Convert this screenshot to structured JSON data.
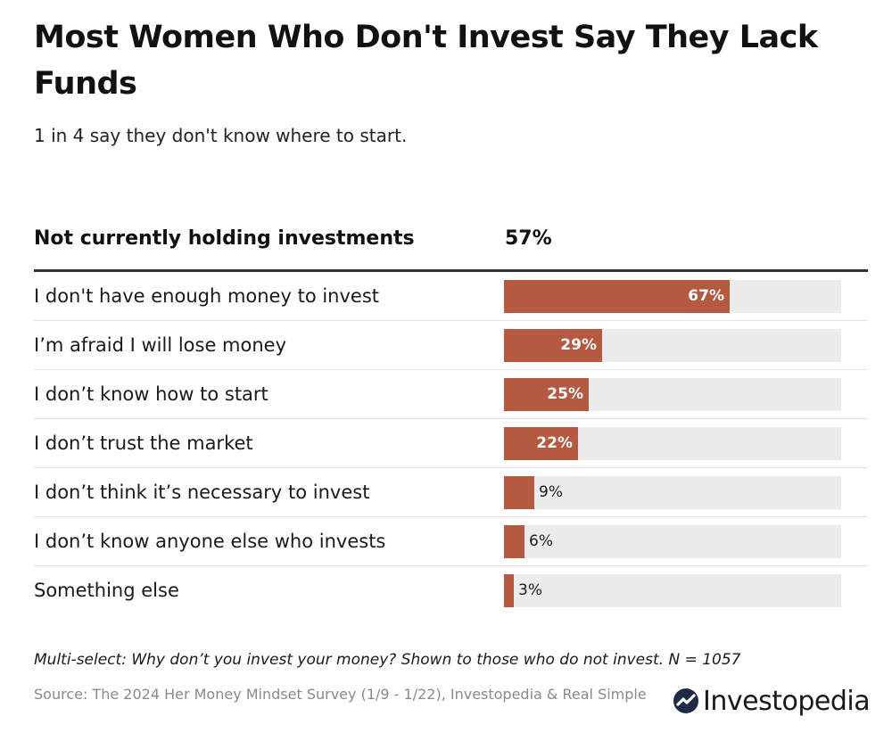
{
  "title": "Most Women Who Don't Invest Say They Lack Funds",
  "subtitle": "1 in 4 say they don't know where to start.",
  "header": {
    "label": "Not currently holding investments",
    "value": "57%"
  },
  "chart_data": {
    "type": "bar",
    "orientation": "horizontal",
    "title": "Most Women Who Don't Invest Say They Lack Funds",
    "subtitle": "1 in 4 say they don't know where to start.",
    "xlim": [
      0,
      100
    ],
    "unit": "%",
    "categories": [
      "I don't have enough money to invest",
      "I’m afraid I will lose money",
      "I don’t know how to start",
      "I don’t trust the market",
      "I don’t think it’s necessary to invest",
      "I don’t know anyone else who invests",
      "Something else"
    ],
    "values": [
      67,
      29,
      25,
      22,
      9,
      6,
      3
    ],
    "labels": [
      "67%",
      "29%",
      "25%",
      "22%",
      "9%",
      "6%",
      "3%"
    ],
    "colors": {
      "bar": "#b55941",
      "track": "#ececec"
    }
  },
  "note": "Multi-select: Why don’t you invest your money? Shown to those who do not invest. N = 1057",
  "source": "Source: The 2024 Her Money Mindset Survey (1/9 - 1/22), Investopedia & Real Simple",
  "brand": {
    "name": "Investopedia",
    "icon": "investopedia-logo-icon"
  }
}
